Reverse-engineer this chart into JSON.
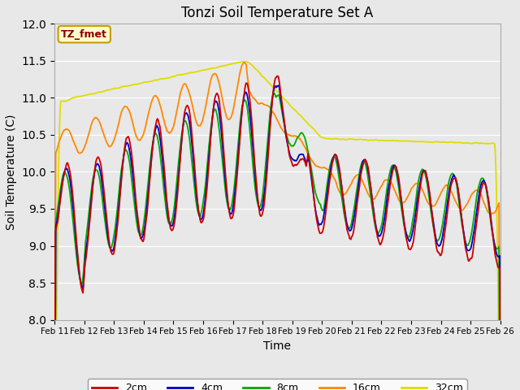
{
  "title": "Tonzi Soil Temperature Set A",
  "xlabel": "Time",
  "ylabel": "Soil Temperature (C)",
  "ylim": [
    8.0,
    12.0
  ],
  "yticks": [
    8.0,
    8.5,
    9.0,
    9.5,
    10.0,
    10.5,
    11.0,
    11.5,
    12.0
  ],
  "xtick_labels": [
    "Feb 11",
    "Feb 12",
    "Feb 13",
    "Feb 14",
    "Feb 15",
    "Feb 16",
    "Feb 17",
    "Feb 18",
    "Feb 19",
    "Feb 20",
    "Feb 21",
    "Feb 22",
    "Feb 23",
    "Feb 24",
    "Feb 25",
    "Feb 26"
  ],
  "colors": {
    "2cm": "#cc0000",
    "4cm": "#0000cc",
    "8cm": "#00aa00",
    "16cm": "#ff8800",
    "32cm": "#dddd00"
  },
  "legend_label": "TZ_fmet",
  "legend_box_bg": "#ffffcc",
  "legend_box_border": "#cc9900",
  "bg_color": "#e8e8e8",
  "figwidth": 6.4,
  "figheight": 4.8,
  "dpi": 100
}
